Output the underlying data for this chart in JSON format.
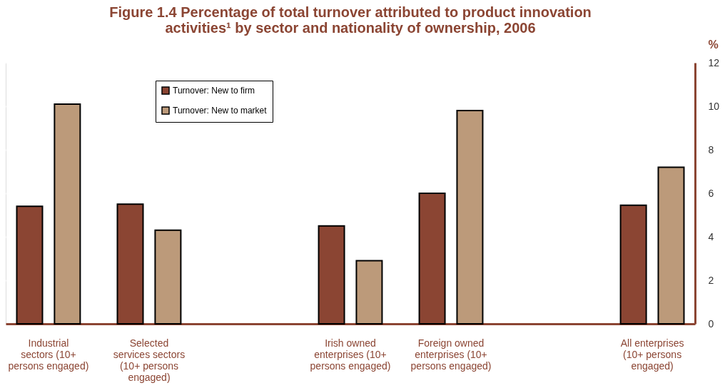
{
  "chart_data": {
    "type": "bar",
    "title": "Figure 1.4 Percentage of total turnover attributed to product innovation activities¹ by sector and nationality of ownership, 2006",
    "ylabel": "%",
    "categories": [
      "Industrial sectors (10+ persons engaged)",
      "Selected services sectors (10+ persons engaged)",
      null,
      "Irish owned enterprises (10+ persons engaged)",
      "Foreign owned enterprises (10+ persons engaged)",
      null,
      "All enterprises (10+ persons engaged)"
    ],
    "series": [
      {
        "name": "Turnover: New to firm",
        "color": "#8b4533",
        "values": [
          5.4,
          5.5,
          null,
          4.5,
          6.0,
          null,
          5.45
        ]
      },
      {
        "name": "Turnover: New to market",
        "color": "#bc9a7a",
        "values": [
          10.1,
          4.3,
          null,
          2.9,
          9.8,
          null,
          7.2
        ]
      }
    ],
    "ylim": [
      0,
      12
    ],
    "yticks": [
      0,
      2,
      4,
      6,
      8,
      10,
      12
    ],
    "grid": "y",
    "legend": "top left"
  }
}
